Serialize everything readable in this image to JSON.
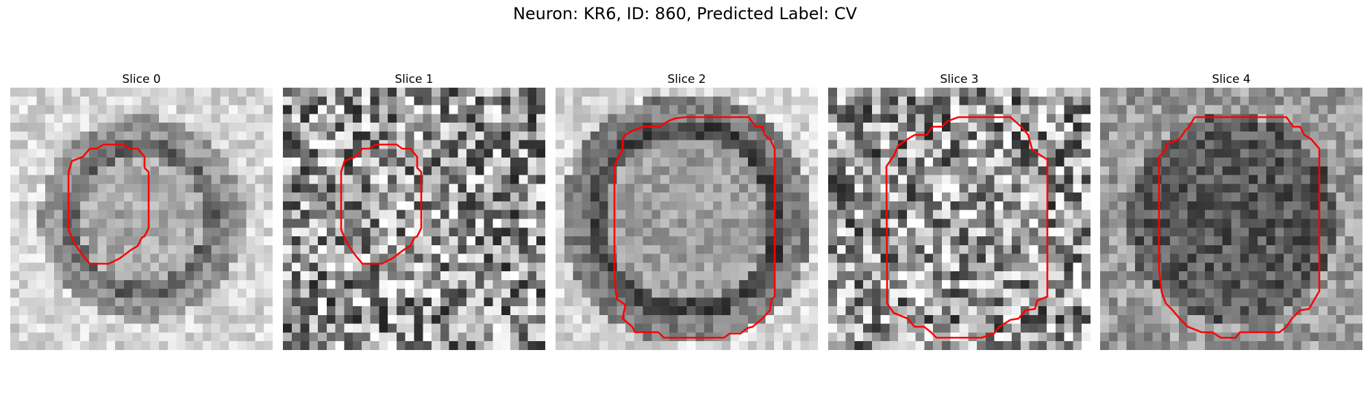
{
  "figure": {
    "title": "Neuron: KR6, ID: 860, Predicted Label: CV"
  },
  "panels": [
    {
      "title": "Slice 0",
      "style": "light",
      "seed": 11,
      "contour_color": "#ff0000"
    },
    {
      "title": "Slice 1",
      "style": "noisy",
      "seed": 23,
      "contour_color": "#ff0000"
    },
    {
      "title": "Slice 2",
      "style": "soma",
      "seed": 37,
      "contour_color": "#ff0000"
    },
    {
      "title": "Slice 3",
      "style": "noisy",
      "seed": 51,
      "contour_color": "#ff0000"
    },
    {
      "title": "Slice 4",
      "style": "dark",
      "seed": 67,
      "contour_color": "#ff0000"
    }
  ]
}
